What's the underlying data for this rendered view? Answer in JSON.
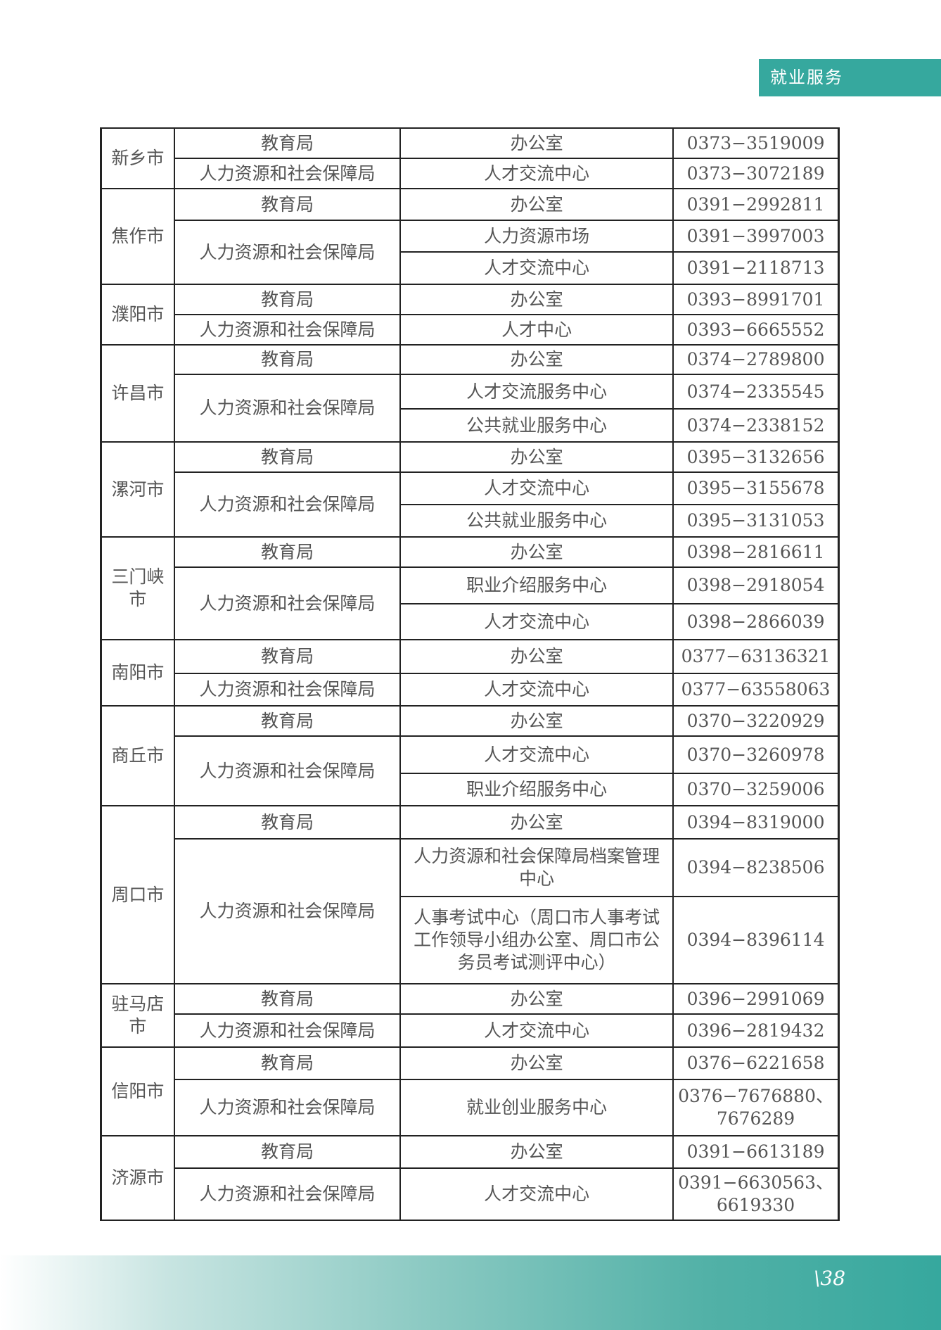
{
  "header": {
    "section_title": "就业服务"
  },
  "page_number": "\\38",
  "colors": {
    "accent": "#36a89e"
  },
  "cities": [
    {
      "city": "新乡市",
      "depts": [
        {
          "dept": "教育局",
          "units": [
            {
              "name": "办公室",
              "phone": "0373−3519009"
            }
          ]
        },
        {
          "dept": "人力资源和社会保障局",
          "units": [
            {
              "name": "人才交流中心",
              "phone": "0373−3072189"
            }
          ]
        }
      ]
    },
    {
      "city": "焦作市",
      "depts": [
        {
          "dept": "教育局",
          "units": [
            {
              "name": "办公室",
              "phone": "0391−2992811"
            }
          ]
        },
        {
          "dept": "人力资源和社会保障局",
          "units": [
            {
              "name": "人力资源市场",
              "phone": "0391−3997003"
            },
            {
              "name": "人才交流中心",
              "phone": "0391−2118713"
            }
          ]
        }
      ]
    },
    {
      "city": "濮阳市",
      "depts": [
        {
          "dept": "教育局",
          "units": [
            {
              "name": "办公室",
              "phone": "0393−8991701"
            }
          ]
        },
        {
          "dept": "人力资源和社会保障局",
          "units": [
            {
              "name": "人才中心",
              "phone": "0393−6665552"
            }
          ]
        }
      ]
    },
    {
      "city": "许昌市",
      "depts": [
        {
          "dept": "教育局",
          "units": [
            {
              "name": "办公室",
              "phone": "0374−2789800"
            }
          ]
        },
        {
          "dept": "人力资源和社会保障局",
          "units": [
            {
              "name": "人才交流服务中心",
              "phone": "0374−2335545"
            },
            {
              "name": "公共就业服务中心",
              "phone": "0374−2338152"
            }
          ]
        }
      ]
    },
    {
      "city": "漯河市",
      "depts": [
        {
          "dept": "教育局",
          "units": [
            {
              "name": "办公室",
              "phone": "0395−3132656"
            }
          ]
        },
        {
          "dept": "人力资源和社会保障局",
          "units": [
            {
              "name": "人才交流中心",
              "phone": "0395−3155678"
            },
            {
              "name": "公共就业服务中心",
              "phone": "0395−3131053"
            }
          ]
        }
      ]
    },
    {
      "city": "三门峡市",
      "depts": [
        {
          "dept": "教育局",
          "units": [
            {
              "name": "办公室",
              "phone": "0398−2816611"
            }
          ]
        },
        {
          "dept": "人力资源和社会保障局",
          "units": [
            {
              "name": "职业介绍服务中心",
              "phone": "0398−2918054"
            },
            {
              "name": "人才交流中心",
              "phone": "0398−2866039"
            }
          ]
        }
      ]
    },
    {
      "city": "南阳市",
      "depts": [
        {
          "dept": "教育局",
          "units": [
            {
              "name": "办公室",
              "phone": "0377−63136321"
            }
          ]
        },
        {
          "dept": "人力资源和社会保障局",
          "units": [
            {
              "name": "人才交流中心",
              "phone": "0377−63558063"
            }
          ]
        }
      ]
    },
    {
      "city": "商丘市",
      "depts": [
        {
          "dept": "教育局",
          "units": [
            {
              "name": "办公室",
              "phone": "0370−3220929"
            }
          ]
        },
        {
          "dept": "人力资源和社会保障局",
          "units": [
            {
              "name": "人才交流中心",
              "phone": "0370−3260978"
            },
            {
              "name": "职业介绍服务中心",
              "phone": "0370−3259006"
            }
          ]
        }
      ]
    },
    {
      "city": "周口市",
      "depts": [
        {
          "dept": "教育局",
          "units": [
            {
              "name": "办公室",
              "phone": "0394−8319000"
            }
          ]
        },
        {
          "dept": "人力资源和社会保障局",
          "units": [
            {
              "name": "人力资源和社会保障局档案管理中心",
              "phone": "0394−8238506"
            },
            {
              "name": "人事考试中心（周口市人事考试工作领导小组办公室、周口市公务员考试测评中心）",
              "phone": "0394−8396114"
            }
          ]
        }
      ]
    },
    {
      "city": "驻马店市",
      "depts": [
        {
          "dept": "教育局",
          "units": [
            {
              "name": "办公室",
              "phone": "0396−2991069"
            }
          ]
        },
        {
          "dept": "人力资源和社会保障局",
          "units": [
            {
              "name": "人才交流中心",
              "phone": "0396−2819432"
            }
          ]
        }
      ]
    },
    {
      "city": "信阳市",
      "depts": [
        {
          "dept": "教育局",
          "units": [
            {
              "name": "办公室",
              "phone": "0376−6221658"
            }
          ]
        },
        {
          "dept": "人力资源和社会保障局",
          "units": [
            {
              "name": "就业创业服务中心",
              "phone": "0376−7676880、7676289"
            }
          ]
        }
      ]
    },
    {
      "city": "济源市",
      "depts": [
        {
          "dept": "教育局",
          "units": [
            {
              "name": "办公室",
              "phone": "0391−6613189"
            }
          ]
        },
        {
          "dept": "人力资源和社会保障局",
          "units": [
            {
              "name": "人才交流中心",
              "phone": "0391−6630563、6619330"
            }
          ]
        }
      ]
    }
  ]
}
